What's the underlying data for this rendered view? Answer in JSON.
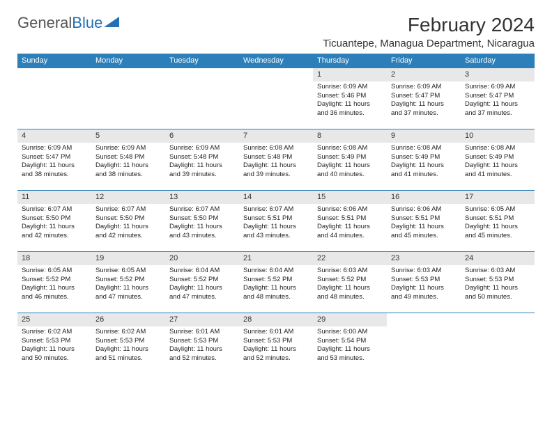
{
  "logo": {
    "text_a": "General",
    "text_b": "Blue"
  },
  "title": "February 2024",
  "location": "Ticuantepe, Managua Department, Nicaragua",
  "colors": {
    "header_bg": "#2c7fb8",
    "header_text": "#ffffff",
    "daynum_bg": "#e8e8e8",
    "border": "#2c7fb8",
    "logo_gray": "#555555",
    "logo_blue": "#2270b8",
    "body_text": "#222222"
  },
  "dow": [
    "Sunday",
    "Monday",
    "Tuesday",
    "Wednesday",
    "Thursday",
    "Friday",
    "Saturday"
  ],
  "first_dow": 4,
  "days": [
    {
      "n": 1,
      "sr": "6:09 AM",
      "ss": "5:46 PM",
      "dl": "11 hours and 36 minutes."
    },
    {
      "n": 2,
      "sr": "6:09 AM",
      "ss": "5:47 PM",
      "dl": "11 hours and 37 minutes."
    },
    {
      "n": 3,
      "sr": "6:09 AM",
      "ss": "5:47 PM",
      "dl": "11 hours and 37 minutes."
    },
    {
      "n": 4,
      "sr": "6:09 AM",
      "ss": "5:47 PM",
      "dl": "11 hours and 38 minutes."
    },
    {
      "n": 5,
      "sr": "6:09 AM",
      "ss": "5:48 PM",
      "dl": "11 hours and 38 minutes."
    },
    {
      "n": 6,
      "sr": "6:09 AM",
      "ss": "5:48 PM",
      "dl": "11 hours and 39 minutes."
    },
    {
      "n": 7,
      "sr": "6:08 AM",
      "ss": "5:48 PM",
      "dl": "11 hours and 39 minutes."
    },
    {
      "n": 8,
      "sr": "6:08 AM",
      "ss": "5:49 PM",
      "dl": "11 hours and 40 minutes."
    },
    {
      "n": 9,
      "sr": "6:08 AM",
      "ss": "5:49 PM",
      "dl": "11 hours and 41 minutes."
    },
    {
      "n": 10,
      "sr": "6:08 AM",
      "ss": "5:49 PM",
      "dl": "11 hours and 41 minutes."
    },
    {
      "n": 11,
      "sr": "6:07 AM",
      "ss": "5:50 PM",
      "dl": "11 hours and 42 minutes."
    },
    {
      "n": 12,
      "sr": "6:07 AM",
      "ss": "5:50 PM",
      "dl": "11 hours and 42 minutes."
    },
    {
      "n": 13,
      "sr": "6:07 AM",
      "ss": "5:50 PM",
      "dl": "11 hours and 43 minutes."
    },
    {
      "n": 14,
      "sr": "6:07 AM",
      "ss": "5:51 PM",
      "dl": "11 hours and 43 minutes."
    },
    {
      "n": 15,
      "sr": "6:06 AM",
      "ss": "5:51 PM",
      "dl": "11 hours and 44 minutes."
    },
    {
      "n": 16,
      "sr": "6:06 AM",
      "ss": "5:51 PM",
      "dl": "11 hours and 45 minutes."
    },
    {
      "n": 17,
      "sr": "6:05 AM",
      "ss": "5:51 PM",
      "dl": "11 hours and 45 minutes."
    },
    {
      "n": 18,
      "sr": "6:05 AM",
      "ss": "5:52 PM",
      "dl": "11 hours and 46 minutes."
    },
    {
      "n": 19,
      "sr": "6:05 AM",
      "ss": "5:52 PM",
      "dl": "11 hours and 47 minutes."
    },
    {
      "n": 20,
      "sr": "6:04 AM",
      "ss": "5:52 PM",
      "dl": "11 hours and 47 minutes."
    },
    {
      "n": 21,
      "sr": "6:04 AM",
      "ss": "5:52 PM",
      "dl": "11 hours and 48 minutes."
    },
    {
      "n": 22,
      "sr": "6:03 AM",
      "ss": "5:52 PM",
      "dl": "11 hours and 48 minutes."
    },
    {
      "n": 23,
      "sr": "6:03 AM",
      "ss": "5:53 PM",
      "dl": "11 hours and 49 minutes."
    },
    {
      "n": 24,
      "sr": "6:03 AM",
      "ss": "5:53 PM",
      "dl": "11 hours and 50 minutes."
    },
    {
      "n": 25,
      "sr": "6:02 AM",
      "ss": "5:53 PM",
      "dl": "11 hours and 50 minutes."
    },
    {
      "n": 26,
      "sr": "6:02 AM",
      "ss": "5:53 PM",
      "dl": "11 hours and 51 minutes."
    },
    {
      "n": 27,
      "sr": "6:01 AM",
      "ss": "5:53 PM",
      "dl": "11 hours and 52 minutes."
    },
    {
      "n": 28,
      "sr": "6:01 AM",
      "ss": "5:53 PM",
      "dl": "11 hours and 52 minutes."
    },
    {
      "n": 29,
      "sr": "6:00 AM",
      "ss": "5:54 PM",
      "dl": "11 hours and 53 minutes."
    }
  ],
  "labels": {
    "sunrise": "Sunrise:",
    "sunset": "Sunset:",
    "daylight": "Daylight:"
  }
}
